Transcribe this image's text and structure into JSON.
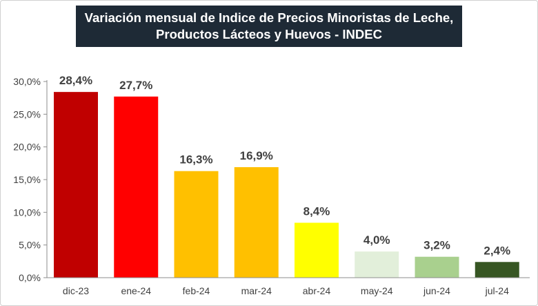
{
  "chart_data": {
    "type": "bar",
    "title_lines": [
      "Variación mensual de Indice de Precios Minoristas de Leche,",
      "Productos Lácteos y Huevos - INDEC"
    ],
    "categories": [
      "dic-23",
      "ene-24",
      "feb-24",
      "mar-24",
      "abr-24",
      "may-24",
      "jun-24",
      "jul-24"
    ],
    "values": [
      28.4,
      27.7,
      16.3,
      16.9,
      8.4,
      4.0,
      3.2,
      2.4
    ],
    "value_labels": [
      "28,4%",
      "27,7%",
      "16,3%",
      "16,9%",
      "8,4%",
      "4,0%",
      "3,2%",
      "2,4%"
    ],
    "bar_colors": [
      "#c00000",
      "#ff0000",
      "#ffc000",
      "#ffc000",
      "#ffff00",
      "#e2efda",
      "#a9d08e",
      "#375623"
    ],
    "y_ticks": [
      0,
      5,
      10,
      15,
      20,
      25,
      30
    ],
    "y_tick_labels": [
      "0,0%",
      "5,0%",
      "10,0%",
      "15,0%",
      "20,0%",
      "25,0%",
      "30,0%"
    ],
    "ylim": [
      0,
      30
    ],
    "grid": false,
    "legend": "none"
  }
}
